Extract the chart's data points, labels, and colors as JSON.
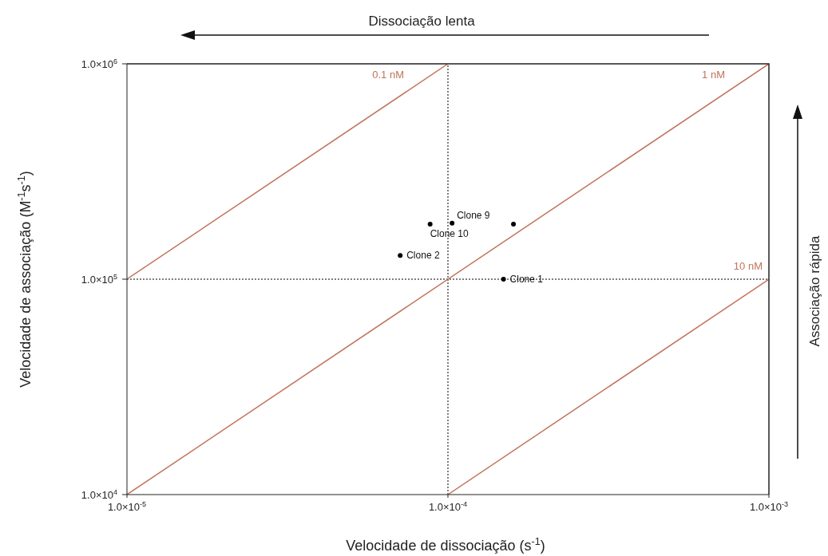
{
  "chart_data": {
    "type": "scatter",
    "xlabel": "Velocidade de dissociação (s$^{-1}$)",
    "ylabel": "Velocidade de associação (M$^{-1}$s$^{-1}$)",
    "log": "xy",
    "xlim": [
      1e-05,
      0.001
    ],
    "ylim": [
      10000,
      1000000
    ],
    "xticks": [
      {
        "value": 1e-05,
        "label": "1.0×10$^{-5}$"
      },
      {
        "value": 0.0001,
        "label": "1.0×10$^{-4}$"
      },
      {
        "value": 0.001,
        "label": "1.0×10$^{-3}$"
      }
    ],
    "yticks": [
      {
        "value": 10000,
        "label": "1.0×10$^{4}$"
      },
      {
        "value": 100000,
        "label": "1.0×10$^{5}$"
      },
      {
        "value": 1000000,
        "label": "1.0×10$^{6}$"
      }
    ],
    "marker": "circle",
    "series": [
      {
        "color": "#000000",
        "x": [
          0.000103,
          8.8e-05,
          7.1e-05,
          0.00016,
          0.000149
        ],
        "values": [
          182000,
          180000,
          129000,
          180000,
          100000
        ]
      },
      {
        "type": "line",
        "marker": "none",
        "name": "0.1 nM",
        "color": "#c0745c",
        "x": [
          1e-05,
          0.0001
        ],
        "values": [
          100000,
          1000000
        ]
      },
      {
        "type": "line",
        "marker": "none",
        "name": "1 nM",
        "color": "#c0745c",
        "x": [
          1e-05,
          0.001
        ],
        "values": [
          10000,
          1000000
        ]
      },
      {
        "type": "line",
        "marker": "none",
        "name": "10 nM",
        "color": "#c0745c",
        "x": [
          0.0001,
          0.001
        ],
        "values": [
          10000,
          100000
        ]
      }
    ],
    "ref_lines": [
      {
        "axis": "x",
        "value": 0.0001,
        "color": "#000000",
        "line_style": "dotted"
      },
      {
        "axis": "y",
        "value": 100000,
        "color": "#000000",
        "line_style": "dotted"
      }
    ],
    "annotations": [
      {
        "text": "Clone 9",
        "x": 0.000103,
        "y": 182000
      },
      {
        "text": "Clone 10",
        "x": 8.8e-05,
        "y": 180000
      },
      {
        "text": "Clone 2",
        "x": 7.1e-05,
        "y": 129000
      },
      {
        "text": "Clone 1",
        "x": 0.000149,
        "y": 100000
      },
      "Dissociação lenta",
      "Associação rápida"
    ]
  }
}
